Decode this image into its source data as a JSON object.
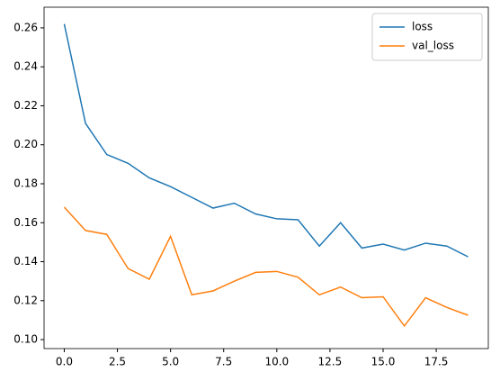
{
  "chart_data": {
    "type": "line",
    "x": [
      0,
      1,
      2,
      3,
      4,
      5,
      6,
      7,
      8,
      9,
      10,
      11,
      12,
      13,
      14,
      15,
      16,
      17,
      18,
      19
    ],
    "series": [
      {
        "name": "loss",
        "color": "#1f77b4",
        "values": [
          0.262,
          0.211,
          0.195,
          0.1905,
          0.183,
          0.1785,
          0.173,
          0.1675,
          0.17,
          0.1645,
          0.162,
          0.1615,
          0.148,
          0.16,
          0.147,
          0.149,
          0.146,
          0.1495,
          0.148,
          0.1425
        ]
      },
      {
        "name": "val_loss",
        "color": "#ff7f0e",
        "values": [
          0.168,
          0.156,
          0.154,
          0.1365,
          0.131,
          0.153,
          0.123,
          0.125,
          0.13,
          0.1345,
          0.135,
          0.132,
          0.123,
          0.127,
          0.1215,
          0.122,
          0.107,
          0.1215,
          0.1165,
          0.1125
        ]
      }
    ],
    "xlim": [
      -0.95,
      19.95
    ],
    "xticks": [
      {
        "value": 0,
        "label": "0.0"
      },
      {
        "value": 2.5,
        "label": "2.5"
      },
      {
        "value": 5,
        "label": "5.0"
      },
      {
        "value": 7.5,
        "label": "7.5"
      },
      {
        "value": 10,
        "label": "10.0"
      },
      {
        "value": 12.5,
        "label": "12.5"
      },
      {
        "value": 15,
        "label": "15.0"
      },
      {
        "value": 17.5,
        "label": "17.5"
      }
    ],
    "ylim": [
      0.0954,
      0.2706
    ],
    "yticks": [
      {
        "value": 0.1,
        "label": "0.10"
      },
      {
        "value": 0.12,
        "label": "0.12"
      },
      {
        "value": 0.14,
        "label": "0.14"
      },
      {
        "value": 0.16,
        "label": "0.16"
      },
      {
        "value": 0.18,
        "label": "0.18"
      },
      {
        "value": 0.2,
        "label": "0.20"
      },
      {
        "value": 0.22,
        "label": "0.22"
      },
      {
        "value": 0.24,
        "label": "0.24"
      },
      {
        "value": 0.26,
        "label": "0.26"
      }
    ],
    "legend": "upper right",
    "grid": false
  }
}
